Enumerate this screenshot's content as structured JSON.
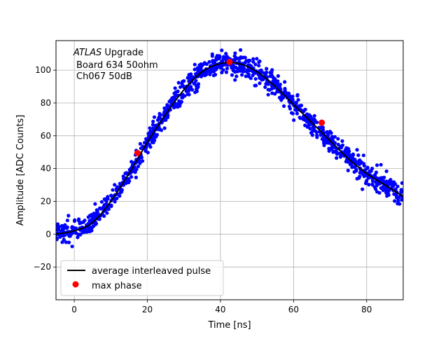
{
  "chart_data": {
    "type": "scatter",
    "xlabel": "Time [ns]",
    "ylabel": "Amplitude [ADC Counts]",
    "xlim": [
      -5,
      90
    ],
    "ylim": [
      -40,
      118
    ],
    "xticks": [
      0,
      20,
      40,
      60,
      80
    ],
    "yticks": [
      -20,
      0,
      20,
      40,
      60,
      80,
      100
    ],
    "grid": true,
    "annotation": {
      "line1_italic": "ATLAS",
      "line1_rest": " Upgrade",
      "line2": "Board 634 50ohm",
      "line3": "Ch067 50dB"
    },
    "legend": {
      "placement": "lower-left",
      "entries": [
        {
          "label": "average interleaved pulse",
          "marker": "line",
          "color": "#000000"
        },
        {
          "label": "max phase",
          "marker": "circle",
          "color": "#ff0000"
        }
      ]
    },
    "series": [
      {
        "kind": "scatter",
        "color": "#0000ff",
        "description_points": "noisy samples around the average pulse",
        "noise_sigma": 3.5,
        "x_range": [
          -5,
          90
        ],
        "point_count": 1100
      },
      {
        "name": "average interleaved pulse",
        "kind": "line",
        "color": "#000000",
        "x": [
          -5,
          0,
          5,
          10,
          15,
          20,
          25,
          30,
          35,
          40,
          45,
          50,
          55,
          60,
          65,
          70,
          75,
          80,
          85,
          90
        ],
        "y": [
          0,
          2,
          7,
          20,
          37,
          56,
          73,
          88,
          99,
          104,
          104,
          99,
          90,
          79,
          68,
          57,
          46,
          37,
          30,
          23
        ]
      },
      {
        "name": "max phase",
        "kind": "points",
        "color": "#ff0000",
        "x": [
          17.3,
          42.5,
          67.7
        ],
        "y": [
          49.5,
          105,
          68
        ]
      }
    ]
  }
}
